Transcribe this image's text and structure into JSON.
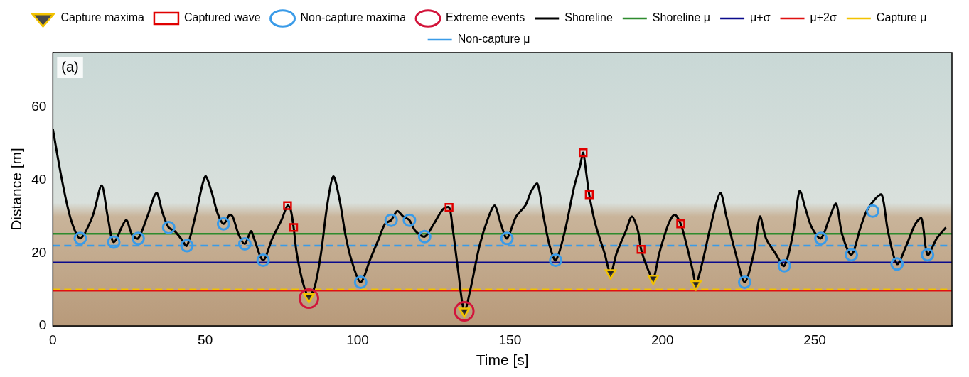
{
  "chart_data": {
    "type": "line",
    "annotation": "(a)",
    "x_label": "Time [s]",
    "y_label": "Distance [m]",
    "xlim": [
      0,
      295
    ],
    "ylim": [
      0,
      75
    ],
    "xticks": [
      0,
      50,
      100,
      150,
      200,
      250
    ],
    "yticks": [
      0,
      20,
      40,
      60
    ],
    "grid": false,
    "legend": "top",
    "series": [
      {
        "name": "Shoreline",
        "type": "line",
        "color": "#000000",
        "line_style": "solid",
        "x": [
          0,
          3,
          6,
          9,
          13,
          16,
          18,
          20,
          24,
          26,
          28,
          31,
          34,
          36,
          38,
          40,
          42,
          44,
          47,
          50,
          52,
          54,
          56,
          58,
          59,
          61,
          63,
          65,
          66,
          69,
          72,
          75,
          77,
          78,
          79,
          80,
          82,
          84,
          86,
          88,
          90,
          92,
          94,
          96,
          98,
          101,
          104,
          107,
          109,
          111,
          113,
          115,
          117,
          119,
          122,
          125,
          128,
          130,
          131,
          133,
          135,
          137,
          140,
          143,
          145,
          147,
          149,
          152,
          155,
          157,
          159,
          161,
          163,
          165,
          168,
          171,
          173,
          174,
          175,
          176,
          178,
          181,
          183,
          185,
          188,
          190,
          192,
          193,
          195,
          197,
          199,
          202,
          204,
          206,
          208,
          210,
          211,
          213,
          216,
          219,
          221,
          224,
          227,
          230,
          232,
          234,
          237,
          240,
          243,
          245,
          247,
          249,
          252,
          255,
          257,
          259,
          262,
          265,
          267,
          270,
          272,
          274,
          277,
          280,
          283,
          285,
          287,
          290,
          293
        ],
        "values": [
          54,
          40,
          29,
          24,
          30,
          38.5,
          30,
          23,
          29,
          25,
          24,
          30,
          36.5,
          31,
          27,
          26,
          24,
          22,
          31,
          41,
          37,
          31,
          28,
          30.5,
          30,
          25,
          22.5,
          26,
          24,
          18,
          24,
          29,
          33,
          32,
          27,
          20,
          12,
          8,
          11,
          20,
          33,
          41,
          35,
          25,
          18,
          12,
          18,
          24,
          28,
          29,
          31.5,
          30,
          29,
          26,
          24.5,
          28,
          32,
          32.5,
          28,
          15,
          4,
          10,
          22,
          30,
          33,
          28,
          24,
          30,
          33,
          37,
          39,
          30,
          22,
          18,
          26,
          38,
          44,
          47.5,
          42,
          36,
          28,
          20,
          14.5,
          20,
          26,
          30,
          26,
          21,
          16,
          13,
          20,
          28,
          30.5,
          28,
          22,
          15,
          11.5,
          17,
          28,
          36.5,
          30,
          20,
          12,
          20,
          30,
          24,
          20,
          16.5,
          26,
          37,
          32,
          27,
          24,
          30,
          33.5,
          25,
          19.5,
          27,
          31.5,
          35,
          36,
          26,
          17,
          22,
          28,
          29.5,
          19.5,
          24,
          27
        ]
      },
      {
        "name": "Shoreline μ",
        "type": "hline",
        "color": "#2e8b2e",
        "line_style": "solid",
        "value": 25.3
      },
      {
        "name": "μ+σ",
        "type": "hline",
        "color": "#0a0a8c",
        "line_style": "solid",
        "value": 17.4
      },
      {
        "name": "μ+2σ",
        "type": "hline",
        "color": "#e01010",
        "line_style": "solid",
        "value": 9.7
      },
      {
        "name": "Capture μ",
        "type": "hline",
        "color": "#f2c200",
        "line_style": "dashed",
        "value": 10
      },
      {
        "name": "Non-capture μ",
        "type": "hline",
        "color": "#3a9be8",
        "line_style": "dashed",
        "value": 22
      },
      {
        "name": "Captured wave",
        "type": "scatter",
        "color": "#e00000",
        "marker": "square",
        "x": [
          77,
          79,
          130,
          174,
          176,
          193,
          206
        ],
        "values": [
          33,
          27,
          32.5,
          47.5,
          36,
          21,
          28
        ]
      },
      {
        "name": "Capture maxima",
        "type": "scatter",
        "color": "#f2c200",
        "marker": "triangle_down",
        "x": [
          84,
          135,
          183,
          197,
          211
        ],
        "values": [
          8,
          4,
          14.5,
          13,
          11.5
        ]
      },
      {
        "name": "Non-capture maxima",
        "type": "scatter",
        "color": "#3a9be8",
        "marker": "circle",
        "x": [
          9,
          20,
          28,
          38,
          44,
          56,
          63,
          69,
          101,
          111,
          117,
          122,
          149,
          165,
          227,
          240,
          252,
          262,
          269,
          277,
          287
        ],
        "values": [
          24,
          23,
          24,
          27,
          22,
          28,
          22.5,
          18,
          12,
          29,
          29,
          24.5,
          24,
          18,
          12,
          16.5,
          24,
          19.5,
          31.5,
          17,
          19.5
        ]
      },
      {
        "name": "Extreme events",
        "type": "scatter",
        "color": "#d2143a",
        "marker": "big_circle",
        "x": [
          84,
          135
        ],
        "values": [
          7.5,
          4
        ]
      }
    ]
  }
}
